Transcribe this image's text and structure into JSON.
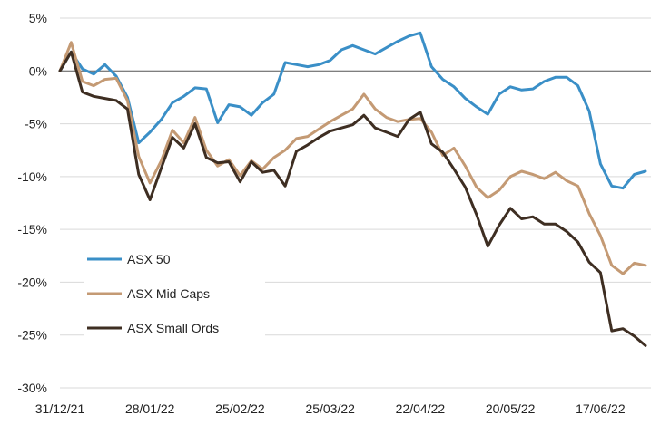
{
  "chart_data": {
    "type": "line",
    "title": "",
    "xlabel": "",
    "ylabel": "",
    "ylim": [
      -30,
      5
    ],
    "y_ticks": [
      5,
      0,
      -5,
      -10,
      -15,
      -20,
      -25,
      -30
    ],
    "y_tick_format": "percent",
    "x_ticks": [
      "31/12/21",
      "28/01/22",
      "25/02/22",
      "25/03/22",
      "22/04/22",
      "20/05/22",
      "17/06/22"
    ],
    "grid": "horizontal",
    "legend_position": "bottom-left",
    "x": [
      "31/12/21",
      "04/01/22",
      "07/01/22",
      "11/01/22",
      "14/01/22",
      "18/01/22",
      "21/01/22",
      "25/01/22",
      "28/01/22",
      "01/02/22",
      "04/02/22",
      "08/02/22",
      "11/02/22",
      "15/02/22",
      "18/02/22",
      "22/02/22",
      "25/02/22",
      "01/03/22",
      "04/03/22",
      "08/03/22",
      "11/03/22",
      "15/03/22",
      "18/03/22",
      "22/03/22",
      "25/03/22",
      "29/03/22",
      "01/04/22",
      "05/04/22",
      "08/04/22",
      "12/04/22",
      "15/04/22",
      "19/04/22",
      "22/04/22",
      "26/04/22",
      "29/04/22",
      "03/05/22",
      "06/05/22",
      "10/05/22",
      "13/05/22",
      "17/05/22",
      "20/05/22",
      "24/05/22",
      "27/05/22",
      "31/05/22",
      "03/06/22",
      "07/06/22",
      "10/06/22",
      "14/06/22",
      "17/06/22",
      "21/06/22",
      "24/06/22",
      "28/06/22",
      "30/06/22"
    ],
    "series": [
      {
        "name": "ASX 50",
        "color": "#3a8fc7",
        "values": [
          0.0,
          1.8,
          0.2,
          -0.3,
          0.6,
          -0.5,
          -2.5,
          -6.8,
          -5.8,
          -4.6,
          -3.0,
          -2.4,
          -1.6,
          -1.7,
          -4.9,
          -3.2,
          -3.4,
          -4.2,
          -3.0,
          -2.2,
          0.8,
          0.6,
          0.4,
          0.6,
          1.0,
          2.0,
          2.4,
          2.0,
          1.6,
          2.2,
          2.8,
          3.3,
          3.6,
          0.4,
          -0.8,
          -1.5,
          -2.6,
          -3.4,
          -4.1,
          -2.2,
          -1.5,
          -1.8,
          -1.7,
          -1.0,
          -0.6,
          -0.6,
          -1.4,
          -3.8,
          -8.8,
          -10.9,
          -11.1,
          -9.8,
          -9.5
        ]
      },
      {
        "name": "ASX Mid Caps",
        "color": "#c49a74",
        "values": [
          0.0,
          2.7,
          -1.0,
          -1.4,
          -0.8,
          -0.7,
          -2.8,
          -8.1,
          -10.6,
          -8.5,
          -5.6,
          -6.8,
          -4.4,
          -7.5,
          -9.0,
          -8.4,
          -9.9,
          -8.5,
          -9.3,
          -8.2,
          -7.5,
          -6.4,
          -6.2,
          -5.5,
          -4.8,
          -4.2,
          -3.6,
          -2.2,
          -3.6,
          -4.4,
          -4.8,
          -4.6,
          -4.5,
          -5.8,
          -8.0,
          -7.3,
          -9.0,
          -11.0,
          -12.0,
          -11.3,
          -10.0,
          -9.5,
          -9.8,
          -10.2,
          -9.6,
          -10.4,
          -10.9,
          -13.5,
          -15.6,
          -18.4,
          -19.2,
          -18.2,
          -18.4
        ]
      },
      {
        "name": "ASX Small Ords",
        "color": "#3e2e22",
        "values": [
          0.0,
          1.8,
          -2.0,
          -2.4,
          -2.6,
          -2.8,
          -3.6,
          -9.8,
          -12.2,
          -9.2,
          -6.3,
          -7.3,
          -5.0,
          -8.2,
          -8.7,
          -8.6,
          -10.5,
          -8.6,
          -9.6,
          -9.4,
          -10.9,
          -7.6,
          -7.0,
          -6.3,
          -5.7,
          -5.4,
          -5.1,
          -4.2,
          -5.4,
          -5.8,
          -6.2,
          -4.6,
          -3.9,
          -6.9,
          -7.7,
          -9.3,
          -11.0,
          -13.6,
          -16.6,
          -14.6,
          -13.0,
          -14.0,
          -13.8,
          -14.5,
          -14.5,
          -15.2,
          -16.2,
          -18.1,
          -19.1,
          -24.6,
          -24.4,
          -25.1,
          -26.0
        ]
      }
    ]
  }
}
